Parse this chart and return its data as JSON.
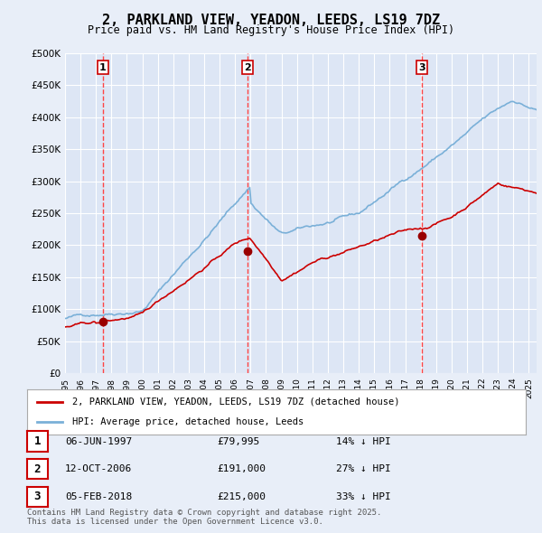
{
  "title": "2, PARKLAND VIEW, YEADON, LEEDS, LS19 7DZ",
  "subtitle": "Price paid vs. HM Land Registry's House Price Index (HPI)",
  "background_color": "#e8eef8",
  "plot_bg_color": "#dde6f5",
  "grid_color": "#ffffff",
  "transactions": [
    {
      "id": 1,
      "date_x": 1997.44,
      "price": 79995,
      "label": "1",
      "date_str": "06-JUN-1997",
      "pct": "14%",
      "dir": "↓"
    },
    {
      "id": 2,
      "date_x": 2006.78,
      "price": 191000,
      "label": "2",
      "date_str": "12-OCT-2006",
      "pct": "27%",
      "dir": "↓"
    },
    {
      "id": 3,
      "date_x": 2018.09,
      "price": 215000,
      "label": "3",
      "date_str": "05-FEB-2018",
      "pct": "33%",
      "dir": "↓"
    }
  ],
  "vline_color": "#ff4444",
  "hpi_line_color": "#7ab0d8",
  "price_line_color": "#cc0000",
  "marker_color": "#990000",
  "ylim": [
    0,
    500000
  ],
  "xlim": [
    1995.0,
    2025.5
  ],
  "yticks": [
    0,
    50000,
    100000,
    150000,
    200000,
    250000,
    300000,
    350000,
    400000,
    450000,
    500000
  ],
  "legend_label_red": "2, PARKLAND VIEW, YEADON, LEEDS, LS19 7DZ (detached house)",
  "legend_label_blue": "HPI: Average price, detached house, Leeds",
  "footer": "Contains HM Land Registry data © Crown copyright and database right 2025.\nThis data is licensed under the Open Government Licence v3.0."
}
